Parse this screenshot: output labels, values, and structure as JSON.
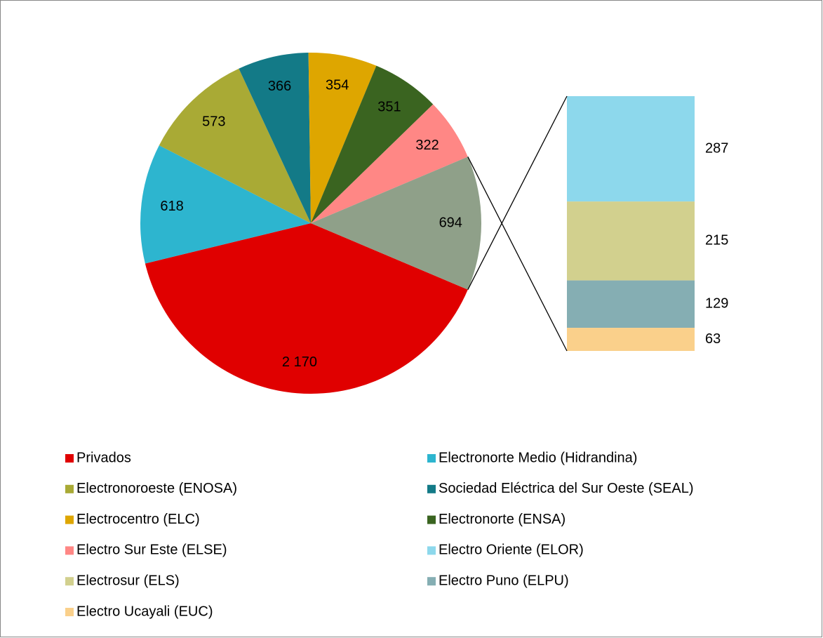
{
  "chart_data": {
    "type": "pie",
    "categories": [
      "Privados",
      "Electronorte Medio (Hidrandina)",
      "Electronoroeste (ENOSA)",
      "Sociedad Eléctrica del Sur Oeste (SEAL)",
      "Electrocentro (ELC)",
      "Electronorte (ENSA)",
      "Electro Sur Este (ELSE)",
      null
    ],
    "values": [
      2170,
      618,
      573,
      366,
      354,
      351,
      322,
      694
    ],
    "value_labels": [
      "2 170",
      "618",
      "573",
      "366",
      "354",
      "351",
      "322",
      "694"
    ],
    "colors": [
      "#e00000",
      "#2db5cf",
      "#a9aa35",
      "#137a87",
      "#dea600",
      "#3a6420",
      "#ff8785",
      "#8fa089"
    ],
    "bar": {
      "categories": [
        "Electro Oriente (ELOR)",
        "Electrosur (ELS)",
        "Electro Puno (ELPU)",
        "Electro Ucayali (EUC)"
      ],
      "values": [
        287,
        215,
        129,
        63
      ],
      "colors": [
        "#8dd8ec",
        "#d2d08e",
        "#85aeb3",
        "#fad08b"
      ]
    }
  }
}
